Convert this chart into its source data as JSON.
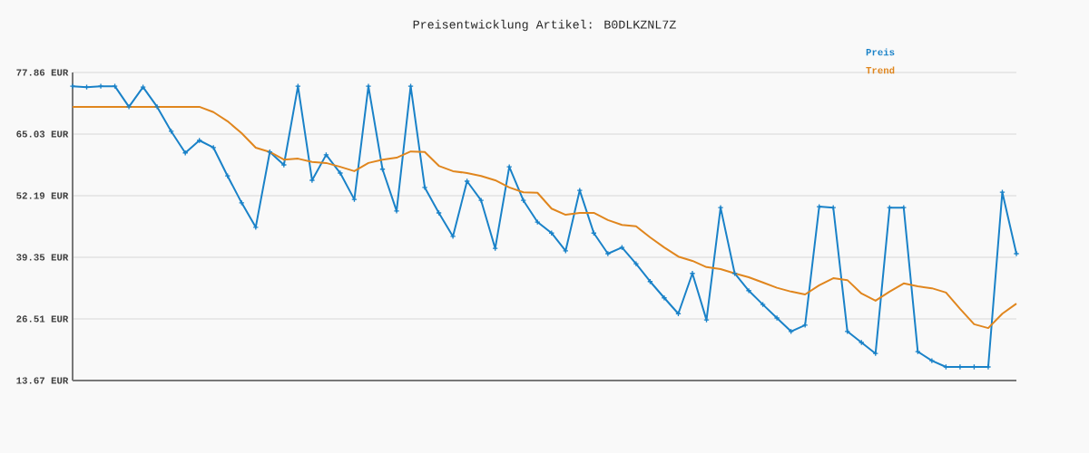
{
  "chart_data": {
    "type": "line",
    "title": "Preisentwicklung Artikel: B0DLKZNL7Z",
    "categories": [
      null,
      null,
      null,
      null,
      null,
      null,
      null,
      null,
      null,
      null,
      null,
      null,
      null,
      null,
      null,
      null,
      null,
      null,
      null,
      null,
      null,
      null,
      null,
      null,
      null,
      null,
      null,
      null,
      null,
      null,
      null,
      null,
      null,
      null,
      null,
      null,
      null,
      null,
      null,
      null,
      null,
      null,
      null,
      null,
      null,
      null,
      null,
      null,
      null,
      null,
      null,
      null,
      null,
      null,
      null,
      null,
      null,
      null,
      null,
      null,
      null,
      null,
      null,
      null,
      null,
      null,
      null,
      null
    ],
    "series": [
      {
        "name": "Preis",
        "color": "#1a82c8",
        "marker": "cross",
        "values": [
          75.0,
          74.8,
          75.0,
          75.0,
          70.7,
          74.8,
          70.7,
          65.6,
          61.1,
          63.7,
          62.2,
          56.3,
          50.7,
          45.6,
          61.3,
          58.6,
          75.0,
          55.4,
          60.7,
          56.9,
          51.4,
          75.0,
          57.7,
          49.0,
          75.0,
          53.9,
          48.6,
          43.7,
          55.2,
          51.2,
          41.2,
          58.2,
          51.2,
          46.7,
          44.4,
          40.7,
          53.3,
          44.4,
          40.1,
          41.4,
          38.0,
          34.3,
          30.9,
          27.6,
          36.0,
          26.3,
          49.7,
          36.0,
          32.4,
          29.5,
          26.7,
          23.9,
          25.2,
          49.9,
          49.7,
          23.9,
          21.6,
          19.3,
          49.7,
          49.7,
          19.7,
          17.8,
          16.5,
          16.5,
          16.5,
          16.5,
          52.9,
          40.1
        ]
      },
      {
        "name": "Trend",
        "color": "#e0861e",
        "marker": "none",
        "values": [
          70.7,
          70.7,
          70.7,
          70.7,
          70.7,
          70.7,
          70.7,
          70.7,
          70.7,
          70.7,
          69.6,
          67.7,
          65.2,
          62.2,
          61.3,
          59.7,
          59.9,
          59.2,
          59.0,
          58.2,
          57.3,
          59.0,
          59.7,
          60.1,
          61.4,
          61.3,
          58.4,
          57.3,
          56.9,
          56.3,
          55.4,
          53.9,
          52.9,
          52.8,
          49.5,
          48.2,
          48.6,
          48.6,
          47.1,
          46.1,
          45.8,
          43.5,
          41.4,
          39.5,
          38.6,
          37.3,
          36.9,
          36.0,
          35.2,
          34.1,
          33.0,
          32.2,
          31.6,
          33.5,
          35.0,
          34.6,
          31.8,
          30.3,
          32.2,
          33.9,
          33.3,
          32.9,
          32.0,
          28.6,
          25.4,
          24.6,
          27.6,
          29.7
        ]
      }
    ],
    "ylim": [
      13.67,
      77.86
    ],
    "yticks": [
      {
        "value": 13.67,
        "label": "13.67 EUR"
      },
      {
        "value": 26.51,
        "label": "26.51 EUR"
      },
      {
        "value": 39.35,
        "label": "39.35 EUR"
      },
      {
        "value": 52.19,
        "label": "52.19 EUR"
      },
      {
        "value": 65.03,
        "label": "65.03 EUR"
      },
      {
        "value": 77.86,
        "label": "77.86 EUR"
      }
    ],
    "grid": "y",
    "legend": "top right",
    "line_style": "solid"
  }
}
